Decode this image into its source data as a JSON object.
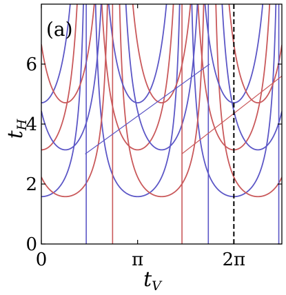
{
  "chart_data": {
    "type": "line",
    "panel_label": "(a)",
    "xlabel_main": "t",
    "xlabel_sub": "V",
    "ylabel_main": "t",
    "ylabel_sub": "H",
    "xlim": [
      0,
      7.85
    ],
    "ylim": [
      0,
      8.0
    ],
    "xticks": [
      {
        "value": 0,
        "label": "0"
      },
      {
        "value": 3.14159,
        "label": "π"
      },
      {
        "value": 6.28319,
        "label": "2π"
      }
    ],
    "yticks": [
      {
        "value": 0,
        "label": "0"
      },
      {
        "value": 2,
        "label": "2"
      },
      {
        "value": 4,
        "label": "4"
      },
      {
        "value": 6,
        "label": "6"
      }
    ],
    "grid": false,
    "legend": "none",
    "colors": {
      "blue": "#5b56c6",
      "red": "#c9585a",
      "marker": "#000000"
    },
    "reference_line": {
      "x": 6.28319,
      "style": "dashed"
    },
    "series": [
      {
        "color": "blue",
        "base": 1.58,
        "shift": 0.0
      },
      {
        "color": "red",
        "base": 1.58,
        "shift": 0.785
      },
      {
        "color": "red",
        "base": 3.14,
        "shift": 0.0
      },
      {
        "color": "blue",
        "base": 3.14,
        "shift": 0.785
      },
      {
        "color": "blue",
        "base": 4.71,
        "shift": 0.0
      },
      {
        "color": "red",
        "base": 4.71,
        "shift": 0.785
      }
    ],
    "vertical_lines": [
      {
        "color": "blue",
        "x": 1.465
      },
      {
        "color": "red",
        "x": 2.325
      },
      {
        "color": "red",
        "x": 4.59
      },
      {
        "color": "blue",
        "x": 5.45
      },
      {
        "color": "blue",
        "x": 7.75
      }
    ],
    "diagonal_segments": [
      {
        "color": "blue",
        "x1": 1.43,
        "y1": 3.0,
        "x2": 5.49,
        "y2": 6.0
      },
      {
        "color": "red",
        "x1": 4.58,
        "y1": 3.0,
        "x2": 7.85,
        "y2": 5.6
      }
    ]
  }
}
